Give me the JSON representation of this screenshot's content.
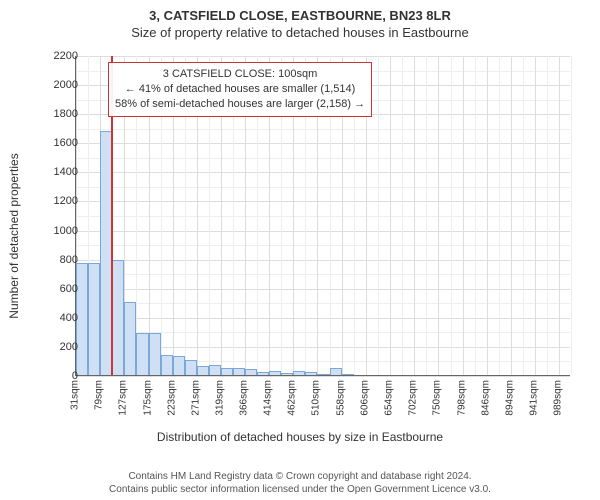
{
  "title": "3, CATSFIELD CLOSE, EASTBOURNE, BN23 8LR",
  "subtitle": "Size of property relative to detached houses in Eastbourne",
  "ylabel": "Number of detached properties",
  "xlabel": "Distribution of detached houses by size in Eastbourne",
  "footer1": "Contains HM Land Registry data © Crown copyright and database right 2024.",
  "footer2": "Contains public sector information licensed under the Open Government Licence v3.0.",
  "chart": {
    "type": "histogram",
    "ylim": [
      0,
      2200
    ],
    "ytick_step": 200,
    "x_min": 31,
    "x_max": 1013,
    "x_ticks": [
      31,
      79,
      127,
      175,
      223,
      271,
      319,
      366,
      414,
      462,
      510,
      558,
      606,
      654,
      702,
      750,
      798,
      846,
      894,
      941,
      989
    ],
    "x_tick_suffix": "sqm",
    "grid_minor": true,
    "grid_color_major": "#dddddd",
    "grid_color_minor": "#eeeeee",
    "bar_color": "#cfe0f5",
    "bar_border": "#7aa8d8",
    "bin_width": 24,
    "bins": [
      {
        "x": 31,
        "count": 770
      },
      {
        "x": 55,
        "count": 770
      },
      {
        "x": 79,
        "count": 1680
      },
      {
        "x": 103,
        "count": 790
      },
      {
        "x": 127,
        "count": 500
      },
      {
        "x": 151,
        "count": 290
      },
      {
        "x": 175,
        "count": 290
      },
      {
        "x": 199,
        "count": 140
      },
      {
        "x": 223,
        "count": 130
      },
      {
        "x": 247,
        "count": 100
      },
      {
        "x": 271,
        "count": 60
      },
      {
        "x": 295,
        "count": 70
      },
      {
        "x": 319,
        "count": 50
      },
      {
        "x": 343,
        "count": 50
      },
      {
        "x": 366,
        "count": 40
      },
      {
        "x": 390,
        "count": 20
      },
      {
        "x": 414,
        "count": 25
      },
      {
        "x": 438,
        "count": 15
      },
      {
        "x": 462,
        "count": 30
      },
      {
        "x": 486,
        "count": 20
      },
      {
        "x": 510,
        "count": 10
      },
      {
        "x": 534,
        "count": 45
      },
      {
        "x": 558,
        "count": 5
      }
    ],
    "marker": {
      "x": 100,
      "color": "#cc3333"
    },
    "annotation": {
      "line1": "3 CATSFIELD CLOSE: 100sqm",
      "line2": "← 41% of detached houses are smaller (1,514)",
      "line3": "58% of semi-detached houses are larger (2,158) →",
      "border_color": "#cc3333"
    },
    "plot_bg": "#ffffff"
  }
}
